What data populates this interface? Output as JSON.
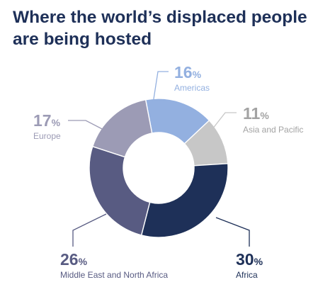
{
  "chart_data": {
    "type": "pie",
    "donut": true,
    "title_lines": [
      "Where the world’s displaced people",
      "are being hosted"
    ],
    "categories": [
      "Americas",
      "Asia and Pacific",
      "Africa",
      "Middle East and North Africa",
      "Europe"
    ],
    "values": [
      16,
      11,
      30,
      26,
      17
    ],
    "value_labels": [
      "16%",
      "11%",
      "30%",
      "26%",
      "17%"
    ],
    "colors": [
      "#93b0e0",
      "#c7c7c7",
      "#1e3058",
      "#585b82",
      "#9c9bb5"
    ],
    "label_colors": [
      "#93b0e0",
      "#a3a3a3",
      "#1e3058",
      "#585b82",
      "#9c9bb5"
    ],
    "leader_colors": [
      "#93b0e0",
      "#c7c7c7",
      "#1e3058",
      "#585b82",
      "#9c9bb5"
    ],
    "start_angle_deg": -10.8,
    "legend": "none"
  }
}
